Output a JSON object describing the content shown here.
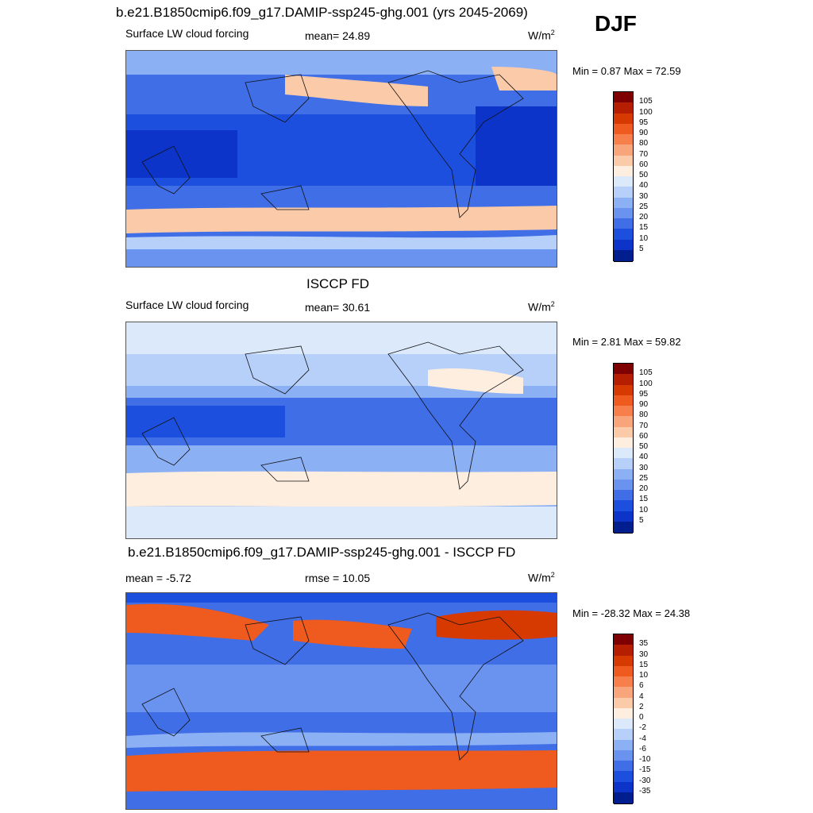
{
  "season": "DJF",
  "panels": [
    {
      "title": "b.e21.B1850cmip6.f09_g17.DAMIP-ssp245-ghg.001 (yrs 2045-2069)",
      "left_label": "Surface LW cloud forcing",
      "mid_label": "mean=  24.89",
      "units": "W/m",
      "units_sup": "2",
      "minmax": "Min =   0.87 Max =  72.59",
      "colorbar_labels": [
        "105",
        "100",
        "95",
        "90",
        "80",
        "70",
        "60",
        "50",
        "40",
        "30",
        "25",
        "20",
        "15",
        "10",
        "5"
      ],
      "colors": [
        "#7f0000",
        "#b51e00",
        "#d63a00",
        "#ef5a1e",
        "#f77f4c",
        "#f9a57b",
        "#fbcaa9",
        "#fdeedf",
        "#dbe9fb",
        "#b7d0f9",
        "#8cb0f4",
        "#6a92ef",
        "#3f6ee6",
        "#1d4fde",
        "#0d34c9",
        "#001e8e"
      ]
    },
    {
      "title": "ISCCP FD",
      "left_label": "Surface LW cloud forcing",
      "mid_label": "mean=  30.61",
      "units": "W/m",
      "units_sup": "2",
      "minmax": "Min =   2.81 Max =  59.82",
      "colorbar_labels": [
        "105",
        "100",
        "95",
        "90",
        "80",
        "70",
        "60",
        "50",
        "40",
        "30",
        "25",
        "20",
        "15",
        "10",
        "5"
      ],
      "colors": [
        "#7f0000",
        "#b51e00",
        "#d63a00",
        "#ef5a1e",
        "#f77f4c",
        "#f9a57b",
        "#fbcaa9",
        "#fdeedf",
        "#dbe9fb",
        "#b7d0f9",
        "#8cb0f4",
        "#6a92ef",
        "#3f6ee6",
        "#1d4fde",
        "#0d34c9",
        "#001e8e"
      ]
    },
    {
      "title": "b.e21.B1850cmip6.f09_g17.DAMIP-ssp245-ghg.001 - ISCCP FD",
      "left_label": "mean =  -5.72",
      "mid_label": "rmse =  10.05",
      "units": "W/m",
      "units_sup": "2",
      "minmax": "Min = -28.32 Max =  24.38",
      "colorbar_labels": [
        "35",
        "30",
        "15",
        "10",
        "6",
        "4",
        "2",
        "0",
        "-2",
        "-4",
        "-6",
        "-10",
        "-15",
        "-30",
        "-35"
      ],
      "colors": [
        "#7f0000",
        "#b51e00",
        "#d63a00",
        "#ef5a1e",
        "#f77f4c",
        "#f9a57b",
        "#fbcaa9",
        "#fdeedf",
        "#dbe9fb",
        "#b7d0f9",
        "#8cb0f4",
        "#6a92ef",
        "#3f6ee6",
        "#1d4fde",
        "#0d34c9",
        "#001e8e"
      ]
    }
  ]
}
